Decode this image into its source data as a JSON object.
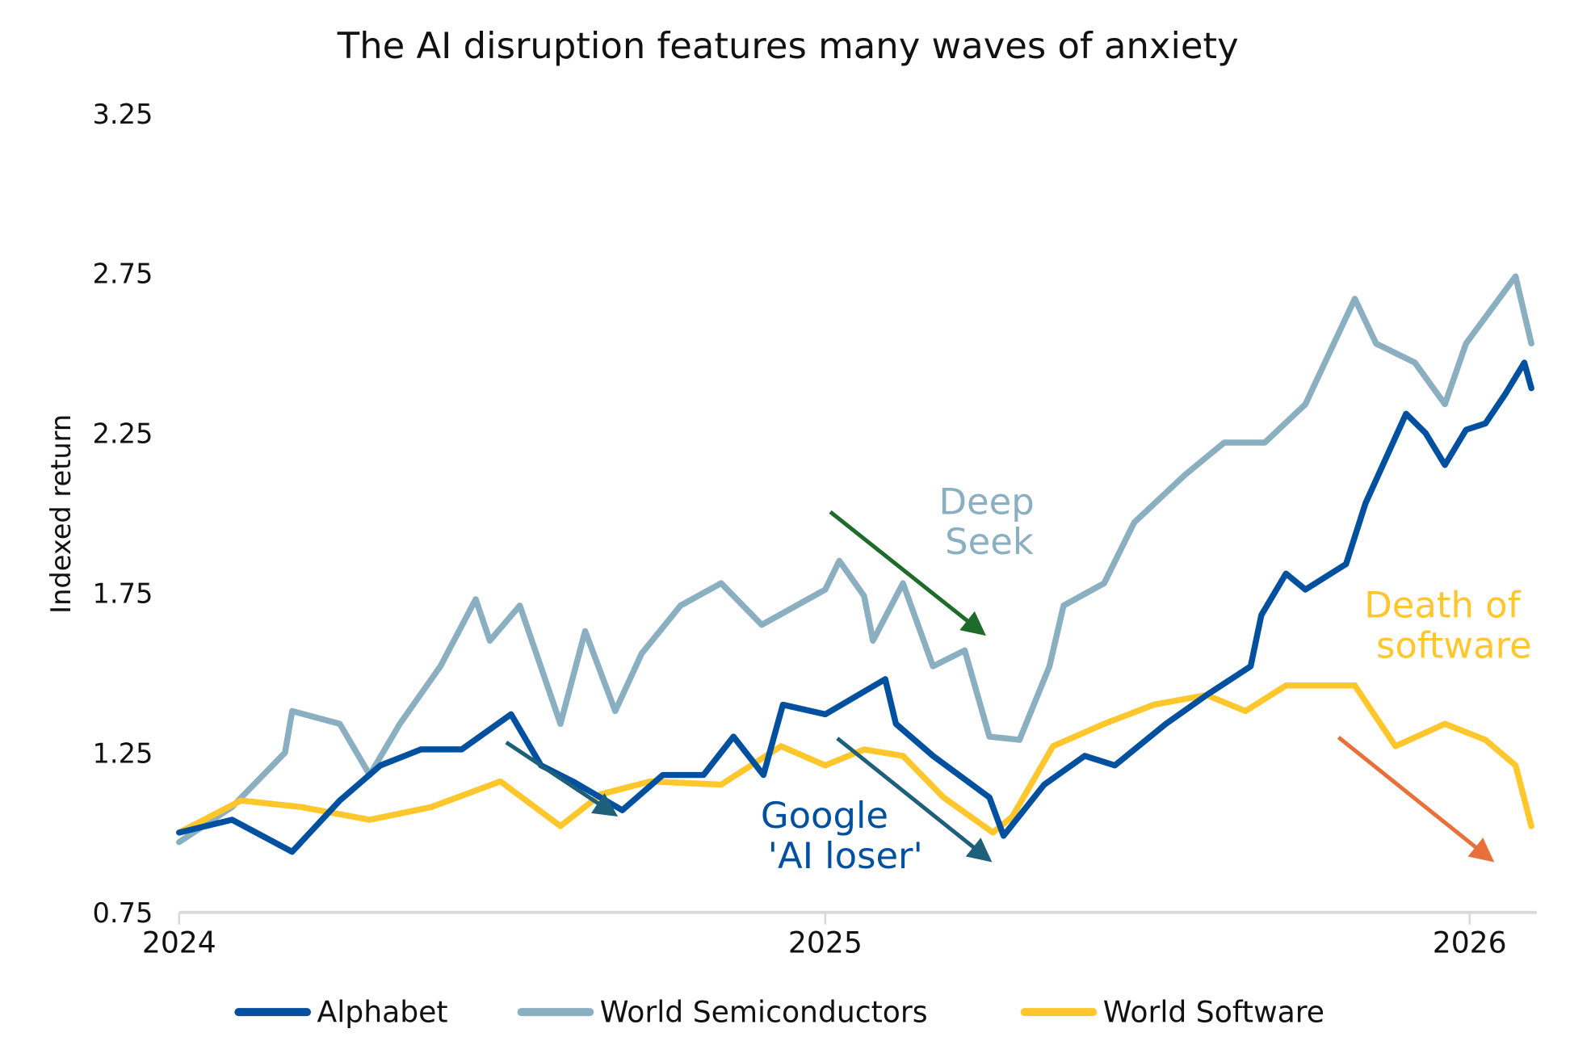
{
  "chart_data": {
    "type": "line",
    "title": "The AI disruption features many waves of anxiety",
    "xlabel": "",
    "ylabel": "Indexed return",
    "xlim": [
      "2024-01-01",
      "2026-02-05"
    ],
    "ylim": [
      0.75,
      3.25
    ],
    "x_ticks": [
      "2024",
      "2025",
      "2026"
    ],
    "y_ticks": [
      "0.75",
      "1.25",
      "1.75",
      "2.25",
      "2.75",
      "3.25"
    ],
    "grid": false,
    "legend_position": "bottom",
    "series": [
      {
        "name": "Alphabet",
        "color": "#0050a0",
        "points": [
          [
            "2024-01-01",
            1.0
          ],
          [
            "2024-01-31",
            1.04
          ],
          [
            "2024-03-05",
            0.94
          ],
          [
            "2024-04-01",
            1.1
          ],
          [
            "2024-04-24",
            1.21
          ],
          [
            "2024-05-17",
            1.26
          ],
          [
            "2024-06-09",
            1.26
          ],
          [
            "2024-07-07",
            1.37
          ],
          [
            "2024-07-24",
            1.21
          ],
          [
            "2024-08-11",
            1.16
          ],
          [
            "2024-09-08",
            1.07
          ],
          [
            "2024-10-01",
            1.18
          ],
          [
            "2024-10-24",
            1.18
          ],
          [
            "2024-11-10",
            1.3
          ],
          [
            "2024-11-27",
            1.18
          ],
          [
            "2024-12-08",
            1.4
          ],
          [
            "2025-01-01",
            1.37
          ],
          [
            "2025-02-04",
            1.48
          ],
          [
            "2025-02-10",
            1.34
          ],
          [
            "2025-03-03",
            1.24
          ],
          [
            "2025-04-04",
            1.11
          ],
          [
            "2025-04-12",
            0.99
          ],
          [
            "2025-05-05",
            1.15
          ],
          [
            "2025-05-28",
            1.24
          ],
          [
            "2025-06-14",
            1.21
          ],
          [
            "2025-07-13",
            1.34
          ],
          [
            "2025-08-05",
            1.43
          ],
          [
            "2025-08-30",
            1.52
          ],
          [
            "2025-09-05",
            1.68
          ],
          [
            "2025-09-19",
            1.81
          ],
          [
            "2025-09-30",
            1.76
          ],
          [
            "2025-10-23",
            1.84
          ],
          [
            "2025-11-03",
            2.03
          ],
          [
            "2025-11-26",
            2.31
          ],
          [
            "2025-12-07",
            2.25
          ],
          [
            "2025-12-18",
            2.15
          ],
          [
            "2025-12-30",
            2.26
          ],
          [
            "2026-01-10",
            2.28
          ],
          [
            "2026-01-21",
            2.37
          ],
          [
            "2026-02-01",
            2.47
          ],
          [
            "2026-02-05",
            2.39
          ]
        ]
      },
      {
        "name": "World Semiconductors",
        "color": "#8aafc0",
        "points": [
          [
            "2024-01-01",
            0.97
          ],
          [
            "2024-01-31",
            1.08
          ],
          [
            "2024-03-01",
            1.25
          ],
          [
            "2024-03-05",
            1.38
          ],
          [
            "2024-04-01",
            1.34
          ],
          [
            "2024-04-18",
            1.18
          ],
          [
            "2024-05-05",
            1.34
          ],
          [
            "2024-05-28",
            1.52
          ],
          [
            "2024-06-17",
            1.73
          ],
          [
            "2024-06-25",
            1.6
          ],
          [
            "2024-07-12",
            1.71
          ],
          [
            "2024-08-04",
            1.34
          ],
          [
            "2024-08-18",
            1.63
          ],
          [
            "2024-09-04",
            1.38
          ],
          [
            "2024-09-19",
            1.56
          ],
          [
            "2024-10-11",
            1.71
          ],
          [
            "2024-11-03",
            1.78
          ],
          [
            "2024-11-26",
            1.65
          ],
          [
            "2025-01-01",
            1.76
          ],
          [
            "2025-01-09",
            1.85
          ],
          [
            "2025-01-23",
            1.74
          ],
          [
            "2025-01-28",
            1.6
          ],
          [
            "2025-02-14",
            1.78
          ],
          [
            "2025-03-03",
            1.52
          ],
          [
            "2025-03-21",
            1.57
          ],
          [
            "2025-04-04",
            1.3
          ],
          [
            "2025-04-21",
            1.29
          ],
          [
            "2025-05-08",
            1.52
          ],
          [
            "2025-05-16",
            1.71
          ],
          [
            "2025-06-08",
            1.78
          ],
          [
            "2025-06-25",
            1.97
          ],
          [
            "2025-07-24",
            2.12
          ],
          [
            "2025-08-15",
            2.22
          ],
          [
            "2025-09-07",
            2.22
          ],
          [
            "2025-09-30",
            2.34
          ],
          [
            "2025-10-28",
            2.67
          ],
          [
            "2025-11-09",
            2.53
          ],
          [
            "2025-12-01",
            2.47
          ],
          [
            "2025-12-18",
            2.34
          ],
          [
            "2025-12-30",
            2.53
          ],
          [
            "2026-01-27",
            2.74
          ],
          [
            "2026-02-05",
            2.53
          ]
        ]
      },
      {
        "name": "World Software",
        "color": "#ffc72c",
        "points": [
          [
            "2024-01-01",
            1.0
          ],
          [
            "2024-02-05",
            1.1
          ],
          [
            "2024-03-10",
            1.08
          ],
          [
            "2024-04-18",
            1.04
          ],
          [
            "2024-05-23",
            1.08
          ],
          [
            "2024-07-01",
            1.16
          ],
          [
            "2024-08-04",
            1.02
          ],
          [
            "2024-08-27",
            1.12
          ],
          [
            "2024-09-24",
            1.16
          ],
          [
            "2024-11-03",
            1.15
          ],
          [
            "2024-12-07",
            1.27
          ],
          [
            "2025-01-01",
            1.21
          ],
          [
            "2025-01-23",
            1.26
          ],
          [
            "2025-02-14",
            1.24
          ],
          [
            "2025-03-09",
            1.11
          ],
          [
            "2025-04-06",
            1.0
          ],
          [
            "2025-04-17",
            1.05
          ],
          [
            "2025-05-10",
            1.27
          ],
          [
            "2025-06-08",
            1.34
          ],
          [
            "2025-07-06",
            1.4
          ],
          [
            "2025-08-05",
            1.43
          ],
          [
            "2025-08-27",
            1.38
          ],
          [
            "2025-09-19",
            1.46
          ],
          [
            "2025-10-28",
            1.46
          ],
          [
            "2025-11-20",
            1.27
          ],
          [
            "2025-12-18",
            1.34
          ],
          [
            "2026-01-10",
            1.29
          ],
          [
            "2026-01-27",
            1.21
          ],
          [
            "2026-02-05",
            1.02
          ]
        ]
      }
    ],
    "annotations": [
      {
        "lines": [
          "Deep",
          "Seek"
        ],
        "color": "#8aafc0",
        "arrow_color": "#1e6b2a"
      },
      {
        "lines": [
          "Google",
          "'AI loser'"
        ],
        "color": "#0050a0",
        "arrow_color": "#1e5f7a"
      },
      {
        "lines": [
          "Death of",
          "software"
        ],
        "color": "#ffc72c",
        "arrow_color": "#e8703a"
      }
    ]
  }
}
